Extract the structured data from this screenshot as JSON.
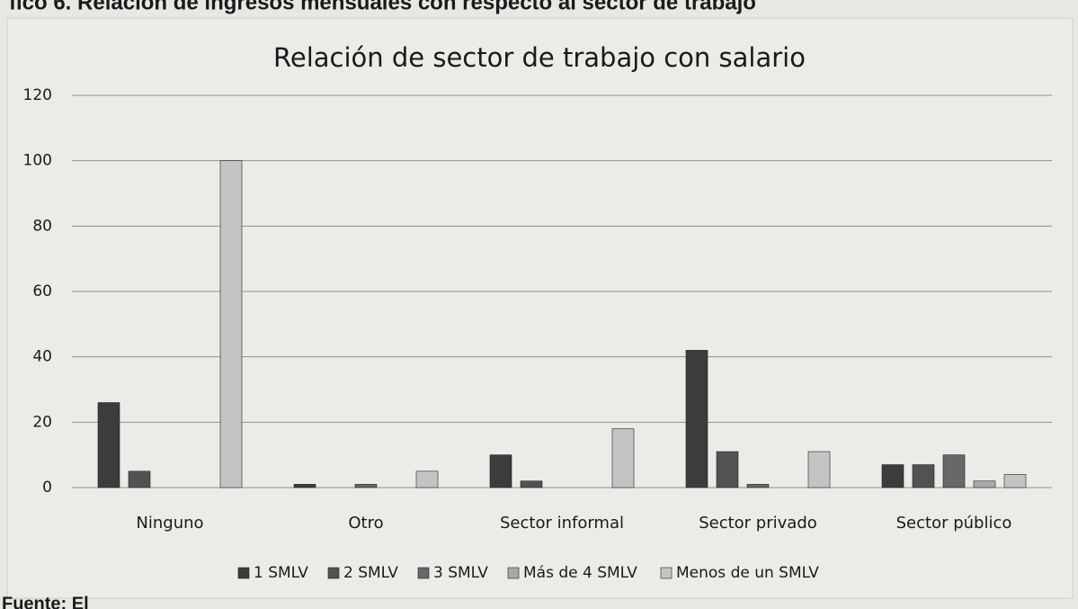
{
  "chart_data": {
    "type": "bar",
    "heading": "fico 6. Relación de ingresos mensuales con respecto al sector de trabajo",
    "title": "Relación de sector de trabajo con salario",
    "source": "Fuente: El",
    "categories": [
      "Ninguno",
      "Otro",
      "Sector informal",
      "Sector privado",
      "Sector público"
    ],
    "series": [
      {
        "name": "1 SMLV",
        "color": "#3c3c3c",
        "values": [
          26,
          1,
          10,
          42,
          7
        ]
      },
      {
        "name": "2 SMLV",
        "color": "#525252",
        "values": [
          5,
          0,
          2,
          11,
          7
        ]
      },
      {
        "name": "3 SMLV",
        "color": "#686868",
        "values": [
          0,
          1,
          0,
          1,
          10
        ]
      },
      {
        "name": "Más de 4 SMLV",
        "color": "#a9a9a9",
        "values": [
          0,
          0,
          0,
          0,
          2
        ]
      },
      {
        "name": "Menos de un SMLV",
        "color": "#c4c4c4",
        "values": [
          100,
          5,
          18,
          11,
          4
        ]
      }
    ],
    "ylim": [
      0,
      120
    ],
    "yticks": [
      0,
      20,
      40,
      60,
      80,
      100,
      120
    ],
    "grid": true,
    "legend": "bottom"
  }
}
